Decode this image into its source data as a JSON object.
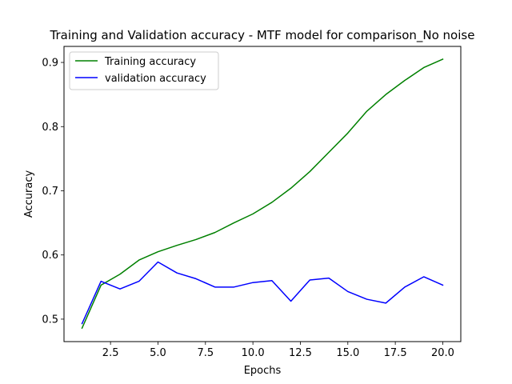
{
  "chart_data": {
    "type": "line",
    "title": "Training and Validation accuracy - MTF model for comparison_No noise",
    "xlabel": "Epochs",
    "ylabel": "Accuracy",
    "xlim": [
      0.05,
      20.95
    ],
    "ylim": [
      0.465,
      0.925
    ],
    "xticks": [
      2.5,
      5.0,
      7.5,
      10.0,
      12.5,
      15.0,
      17.5,
      20.0
    ],
    "xtick_labels": [
      "2.5",
      "5.0",
      "7.5",
      "10.0",
      "12.5",
      "15.0",
      "17.5",
      "20.0"
    ],
    "yticks": [
      0.5,
      0.6,
      0.7,
      0.8,
      0.9
    ],
    "ytick_labels": [
      "0.5",
      "0.6",
      "0.7",
      "0.8",
      "0.9"
    ],
    "grid": false,
    "legend_position": "top-left",
    "x": [
      1,
      2,
      3,
      4,
      5,
      6,
      7,
      8,
      9,
      10,
      11,
      12,
      13,
      14,
      15,
      16,
      17,
      18,
      19,
      20
    ],
    "series": [
      {
        "name": "Training accuracy",
        "color": "#008000",
        "values": [
          0.486,
          0.553,
          0.57,
          0.592,
          0.605,
          0.615,
          0.624,
          0.635,
          0.65,
          0.664,
          0.682,
          0.704,
          0.73,
          0.76,
          0.79,
          0.824,
          0.85,
          0.872,
          0.892,
          0.905
        ]
      },
      {
        "name": "validation accuracy",
        "color": "#0000ff",
        "values": [
          0.493,
          0.559,
          0.547,
          0.559,
          0.589,
          0.572,
          0.563,
          0.55,
          0.55,
          0.557,
          0.56,
          0.528,
          0.561,
          0.564,
          0.543,
          0.531,
          0.525,
          0.55,
          0.566,
          0.553
        ]
      }
    ]
  }
}
